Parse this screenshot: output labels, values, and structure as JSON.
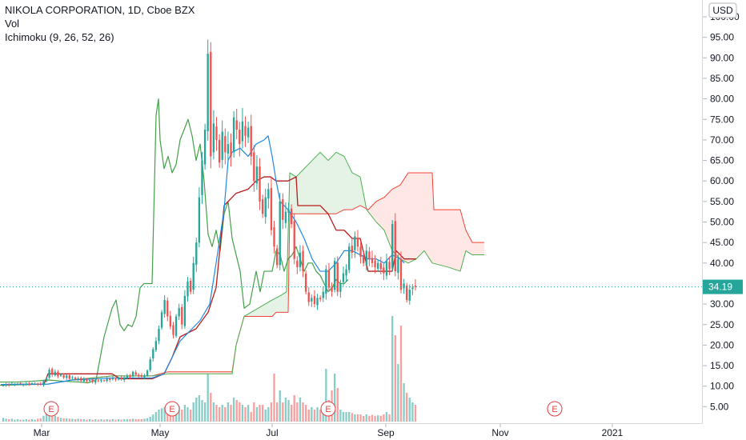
{
  "legend": {
    "symbol": "NIKOLA CORPORATION, 1D, Cboe BZX",
    "vol": "Vol",
    "ichimoku": "Ichimoku (9, 26, 52, 26)"
  },
  "currency": "USD",
  "last_price_label": "34.19",
  "colors": {
    "up": "#26a69a",
    "down": "#ef5350",
    "conversion": "#1e88e5",
    "base": "#b71c1c",
    "lagging": "#43a047",
    "span_a": "#4caf50",
    "span_b": "#f44336",
    "last_price": "#26a69a"
  },
  "chart_data": {
    "type": "candlestick",
    "y_axis": {
      "min": 3,
      "max": 102,
      "ticks": [
        "5.00",
        "10.00",
        "15.00",
        "20.00",
        "25.00",
        "30.00",
        "35.00",
        "40.00",
        "45.00",
        "50.00",
        "55.00",
        "60.00",
        "65.00",
        "70.00",
        "75.00",
        "80.00",
        "85.00",
        "90.00",
        "95.00",
        "100.00"
      ]
    },
    "x_axis": {
      "ticks": [
        "Mar",
        "May",
        "Jul",
        "Sep",
        "Nov",
        "2021"
      ],
      "tick_positions": [
        52,
        200,
        340,
        482,
        625,
        765
      ]
    },
    "earnings_markers": {
      "label": "E",
      "x": [
        64,
        215,
        410,
        693
      ]
    },
    "candles_x_start": 4,
    "candles_x_end": 519,
    "closes": [
      10.2,
      10.4,
      10.3,
      10.5,
      10.4,
      10.6,
      10.5,
      10.4,
      10.6,
      10.5,
      10.7,
      10.6,
      10.5,
      10.4,
      11.2,
      12.0,
      14.0,
      12.8,
      13.5,
      12.4,
      12.9,
      12.1,
      12.6,
      11.8,
      12.2,
      11.6,
      11.9,
      11.3,
      11.7,
      11.2,
      11.5,
      11.0,
      11.4,
      11.2,
      11.6,
      11.3,
      11.8,
      11.5,
      11.9,
      11.6,
      12.0,
      11.7,
      12.1,
      12.5,
      12.2,
      13.5,
      12.8,
      12.5,
      12.3,
      12.6,
      13.8,
      16.5,
      19.0,
      21.0,
      24.0,
      28.0,
      31.0,
      27.0,
      24.5,
      22.5,
      27.0,
      29.0,
      25.0,
      32.0,
      35.5,
      33.0,
      40.0,
      45.0,
      56.0,
      65.0,
      72.5,
      91.0,
      66.0,
      74.0,
      70.0,
      64.5,
      72.0,
      67.0,
      69.0,
      66.0,
      75.5,
      72.5,
      69.0,
      74.5,
      71.0,
      73.0,
      66.0,
      60.0,
      63.5,
      55.0,
      52.0,
      56.0,
      58.0,
      48.0,
      44.0,
      39.5,
      55.0,
      50.5,
      52.5,
      53.0,
      49.5,
      41.0,
      39.0,
      42.5,
      38.0,
      33.0,
      30.5,
      31.5,
      30.0,
      31.5,
      31.2,
      33.0,
      38.5,
      34.0,
      33.0,
      40.5,
      33.0,
      35.0,
      37.5,
      38.5,
      44.0,
      42.5,
      46.5,
      44.0,
      41.5,
      40.0,
      43.0,
      41.0,
      40.0,
      39.0,
      40.0,
      38.5,
      37.5,
      40.5,
      38.5,
      49.5,
      38.0,
      41.0,
      33.5,
      35.0,
      31.0,
      33.5,
      34.0,
      34.19
    ],
    "volumes": [
      0.8,
      0.6,
      0.5,
      0.6,
      0.4,
      0.5,
      0.4,
      0.4,
      0.5,
      0.4,
      0.5,
      0.4,
      0.6,
      0.7,
      1.2,
      1.8,
      2.5,
      1.5,
      1.2,
      1.0,
      0.8,
      0.7,
      0.7,
      0.6,
      0.6,
      0.5,
      0.6,
      0.5,
      0.5,
      0.4,
      0.5,
      0.4,
      0.5,
      0.4,
      0.5,
      0.4,
      0.5,
      0.4,
      0.5,
      0.4,
      0.5,
      0.4,
      0.5,
      0.5,
      0.5,
      0.6,
      0.5,
      0.5,
      0.5,
      0.6,
      0.7,
      1.0,
      1.5,
      2.0,
      2.5,
      2.8,
      3.0,
      2.5,
      2.0,
      1.5,
      2.5,
      3.2,
      2.5,
      3.5,
      3.0,
      2.5,
      4.0,
      5.0,
      5.5,
      4.5,
      4.0,
      10.0,
      6.0,
      4.0,
      3.5,
      3.0,
      3.5,
      3.0,
      4.0,
      3.5,
      5.0,
      4.5,
      4.0,
      3.5,
      3.0,
      3.5,
      2.0,
      4.0,
      3.0,
      3.5,
      3.5,
      2.5,
      3.0,
      4.0,
      10.0,
      4.0,
      6.5,
      4.0,
      5.0,
      4.5,
      3.5,
      5.5,
      4.0,
      5.0,
      4.0,
      3.5,
      2.5,
      3.0,
      2.5,
      3.0,
      2.5,
      3.5,
      11.0,
      4.5,
      6.5,
      10.0,
      7.0,
      2.5,
      2.0,
      2.0,
      2.0,
      1.8,
      1.5,
      1.5,
      1.5,
      1.2,
      1.5,
      1.2,
      1.4,
      1.2,
      1.3,
      1.2,
      1.5,
      2.0,
      1.5,
      22.0,
      18.0,
      12.0,
      20.0,
      8.0,
      6.0,
      5.0,
      4.0,
      3.5
    ],
    "conversion_line": [
      [
        1,
        10.4
      ],
      [
        60,
        10.5
      ],
      [
        90,
        11.5
      ],
      [
        140,
        12.0
      ],
      [
        190,
        12.0
      ],
      [
        205,
        13.0
      ],
      [
        215,
        17
      ],
      [
        225,
        21
      ],
      [
        235,
        23
      ],
      [
        250,
        26
      ],
      [
        262,
        30
      ],
      [
        270,
        40
      ],
      [
        280,
        53
      ],
      [
        285,
        65
      ],
      [
        290,
        67
      ],
      [
        300,
        68
      ],
      [
        310,
        66
      ],
      [
        320,
        69
      ],
      [
        330,
        70
      ],
      [
        335,
        71
      ],
      [
        340,
        66
      ],
      [
        345,
        60
      ],
      [
        350,
        55
      ],
      [
        360,
        53
      ],
      [
        370,
        50
      ],
      [
        380,
        46
      ],
      [
        390,
        41
      ],
      [
        400,
        38
      ],
      [
        410,
        38
      ],
      [
        420,
        40
      ],
      [
        430,
        43
      ],
      [
        440,
        43
      ],
      [
        450,
        42
      ],
      [
        460,
        41
      ],
      [
        470,
        41
      ],
      [
        480,
        40
      ],
      [
        490,
        42
      ],
      [
        500,
        41
      ],
      [
        505,
        40
      ]
    ],
    "base_line": [
      [
        1,
        10.4
      ],
      [
        55,
        10.5
      ],
      [
        60,
        13.0
      ],
      [
        140,
        13.0
      ],
      [
        150,
        11.8
      ],
      [
        190,
        11.8
      ],
      [
        205,
        13.0
      ],
      [
        215,
        17
      ],
      [
        225,
        22
      ],
      [
        245,
        24
      ],
      [
        260,
        28
      ],
      [
        270,
        34
      ],
      [
        280,
        54
      ],
      [
        295,
        57
      ],
      [
        310,
        58
      ],
      [
        320,
        60
      ],
      [
        330,
        61
      ],
      [
        338,
        61
      ],
      [
        345,
        60
      ],
      [
        360,
        60
      ],
      [
        370,
        61
      ],
      [
        372,
        54
      ],
      [
        390,
        54
      ],
      [
        400,
        54
      ],
      [
        410,
        52
      ],
      [
        420,
        48
      ],
      [
        430,
        48
      ],
      [
        440,
        46
      ],
      [
        450,
        46
      ],
      [
        460,
        38
      ],
      [
        490,
        38
      ],
      [
        495,
        43
      ],
      [
        505,
        41
      ],
      [
        520,
        41
      ]
    ],
    "lagging_span": [
      [
        0,
        11
      ],
      [
        20,
        11
      ],
      [
        40,
        11.2
      ],
      [
        60,
        11.5
      ],
      [
        80,
        11.2
      ],
      [
        100,
        11.0
      ],
      [
        110,
        10.8
      ],
      [
        120,
        11.5
      ],
      [
        130,
        22
      ],
      [
        140,
        29
      ],
      [
        145,
        31
      ],
      [
        150,
        25
      ],
      [
        155,
        23.5
      ],
      [
        160,
        25
      ],
      [
        165,
        24.5
      ],
      [
        170,
        27
      ],
      [
        175,
        34
      ],
      [
        180,
        35
      ],
      [
        190,
        35
      ],
      [
        195,
        76
      ],
      [
        198,
        80
      ],
      [
        200,
        70
      ],
      [
        205,
        63
      ],
      [
        210,
        66
      ],
      [
        215,
        62
      ],
      [
        220,
        64
      ],
      [
        225,
        70
      ],
      [
        235,
        75
      ],
      [
        240,
        71
      ],
      [
        245,
        65
      ],
      [
        250,
        69
      ],
      [
        255,
        60
      ],
      [
        260,
        47
      ],
      [
        265,
        44
      ],
      [
        270,
        48
      ],
      [
        275,
        43
      ],
      [
        280,
        52
      ],
      [
        285,
        55
      ],
      [
        290,
        46
      ],
      [
        300,
        38
      ],
      [
        305,
        29
      ],
      [
        312,
        30
      ],
      [
        320,
        38
      ],
      [
        325,
        33
      ],
      [
        330,
        38
      ],
      [
        340,
        38
      ],
      [
        345,
        43
      ],
      [
        350,
        42
      ],
      [
        355,
        38
      ],
      [
        360,
        41
      ],
      [
        365,
        42
      ],
      [
        370,
        44
      ],
      [
        375,
        41
      ],
      [
        380,
        38
      ],
      [
        385,
        40
      ],
      [
        390,
        40
      ],
      [
        395,
        38
      ],
      [
        400,
        37
      ],
      [
        405,
        35
      ],
      [
        410,
        33
      ],
      [
        415,
        34
      ],
      [
        420,
        36
      ],
      [
        425,
        35
      ],
      [
        430,
        35
      ],
      [
        435,
        36
      ]
    ],
    "span_a": [
      [
        0,
        10.2
      ],
      [
        60,
        10.5
      ],
      [
        90,
        11.5
      ],
      [
        140,
        12.5
      ],
      [
        190,
        12.5
      ],
      [
        210,
        13
      ],
      [
        230,
        13
      ],
      [
        260,
        13
      ],
      [
        290,
        13
      ],
      [
        295,
        20
      ],
      [
        305,
        27
      ],
      [
        340,
        31
      ],
      [
        350,
        32
      ],
      [
        358,
        33
      ],
      [
        362,
        62
      ],
      [
        370,
        61
      ],
      [
        390,
        65
      ],
      [
        400,
        67
      ],
      [
        410,
        65
      ],
      [
        420,
        67
      ],
      [
        430,
        66
      ],
      [
        440,
        62
      ],
      [
        450,
        61
      ],
      [
        458,
        53
      ],
      [
        470,
        50
      ],
      [
        480,
        48
      ],
      [
        490,
        43
      ],
      [
        500,
        41
      ],
      [
        510,
        40
      ],
      [
        520,
        41
      ],
      [
        530,
        43
      ],
      [
        540,
        40
      ],
      [
        560,
        39
      ],
      [
        575,
        38
      ],
      [
        582,
        43
      ],
      [
        590,
        42
      ],
      [
        605,
        42
      ]
    ],
    "span_b": [
      [
        0,
        10.2
      ],
      [
        60,
        10.5
      ],
      [
        90,
        11.5
      ],
      [
        140,
        12.5
      ],
      [
        190,
        12.5
      ],
      [
        210,
        13.5
      ],
      [
        230,
        13.5
      ],
      [
        260,
        13.5
      ],
      [
        290,
        13.5
      ],
      [
        295,
        20
      ],
      [
        305,
        27
      ],
      [
        340,
        27
      ],
      [
        345,
        28
      ],
      [
        360,
        28
      ],
      [
        362,
        52
      ],
      [
        400,
        52
      ],
      [
        410,
        52
      ],
      [
        420,
        52
      ],
      [
        430,
        53
      ],
      [
        440,
        53
      ],
      [
        450,
        54
      ],
      [
        460,
        53
      ],
      [
        470,
        55
      ],
      [
        480,
        56
      ],
      [
        490,
        58
      ],
      [
        500,
        59
      ],
      [
        510,
        62
      ],
      [
        520,
        62
      ],
      [
        530,
        62
      ],
      [
        540,
        62
      ],
      [
        542,
        53
      ],
      [
        560,
        53
      ],
      [
        575,
        53
      ],
      [
        582,
        48
      ],
      [
        590,
        45
      ],
      [
        597,
        45
      ],
      [
        605,
        45
      ]
    ]
  }
}
